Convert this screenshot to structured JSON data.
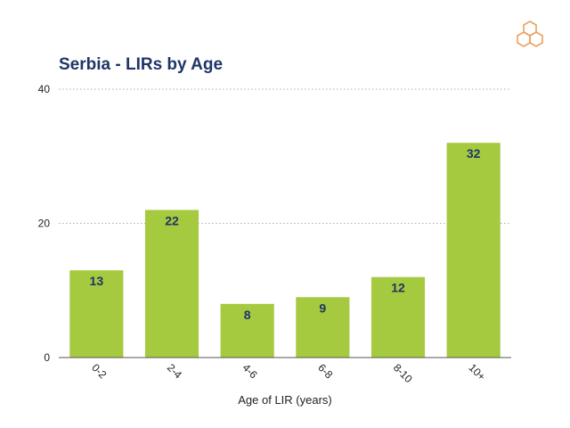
{
  "chart_data": {
    "type": "bar",
    "title": "Serbia - LIRs by Age",
    "xlabel": "Age of LIR (years)",
    "ylabel": "",
    "categories": [
      "0-2",
      "2-4",
      "4-6",
      "6-8",
      "8-10",
      "10+"
    ],
    "values": [
      13,
      22,
      8,
      9,
      12,
      32
    ],
    "ylim": [
      0,
      40
    ],
    "yticks": [
      0,
      20,
      40
    ],
    "grid": true,
    "legend": "none",
    "bar_color": "#a5c93f",
    "label_color": "#1f3566"
  },
  "logo": {
    "icon": "hexagon-cluster-logo",
    "color": "#e8a060"
  }
}
